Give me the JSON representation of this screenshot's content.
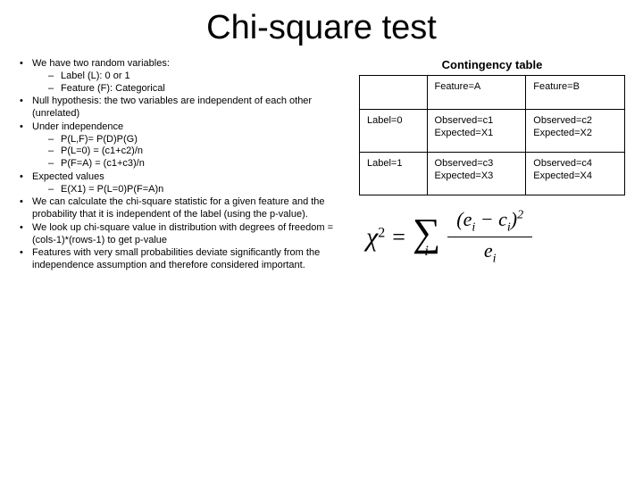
{
  "title": "Chi-square test",
  "bullets": {
    "b1": "We have two random variables:",
    "b1s1": "Label (L): 0 or 1",
    "b1s2": "Feature (F): Categorical",
    "b2": "Null hypothesis: the two variables are independent of each other (unrelated)",
    "b3": "Under independence",
    "b3s1": "P(L,F)= P(D)P(G)",
    "b3s2": "P(L=0) = (c1+c2)/n",
    "b3s3": "P(F=A) = (c1+c3)/n",
    "b4": "Expected values",
    "b4s1": "E(X1) = P(L=0)P(F=A)n",
    "b5": "We can calculate the chi-square statistic for a given feature and the probability that it is independent of the label (using the p-value).",
    "b6": "We look up chi-square value in distribution with degrees of freedom = (cols-1)*(rows-1) to get p-value",
    "b7": "Features with very small probabilities deviate significantly from the independence assumption and therefore considered important."
  },
  "table": {
    "title": "Contingency table",
    "h1": "Feature=A",
    "h2": "Feature=B",
    "r1": "Label=0",
    "r1c1a": "Observed=c1",
    "r1c1b": "Expected=X1",
    "r1c2a": "Observed=c2",
    "r1c2b": "Expected=X2",
    "r2": "Label=1",
    "r2c1a": "Observed=c3",
    "r2c1b": "Expected=X3",
    "r2c2a": "Observed=c4",
    "r2c2b": "Expected=X4"
  },
  "formula": {
    "chi": "χ",
    "exp": "2",
    "eq": "=",
    "sigma": "∑",
    "idx": "i",
    "num_open": "(",
    "num_e": "e",
    "num_minus": " − ",
    "num_c": "c",
    "num_close": ")",
    "num_exp": "2",
    "den_e": "e"
  }
}
